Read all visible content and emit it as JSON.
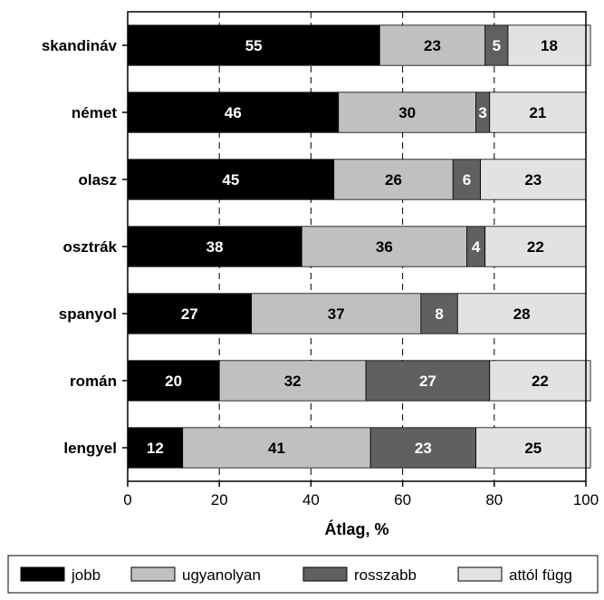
{
  "chart_data": {
    "type": "bar",
    "orientation": "horizontal",
    "stacked": true,
    "categories": [
      "skandináv",
      "német",
      "olasz",
      "osztrák",
      "spanyol",
      "román",
      "lengyel"
    ],
    "series": [
      {
        "name": "jobb",
        "color": "#000000",
        "label_color": "#ffffff",
        "values": [
          55,
          46,
          45,
          38,
          27,
          20,
          12
        ]
      },
      {
        "name": "ugyanolyan",
        "color": "#c0c0c0",
        "label_color": "#000000",
        "values": [
          23,
          30,
          26,
          36,
          37,
          32,
          41
        ]
      },
      {
        "name": "rosszabb",
        "color": "#606060",
        "label_color": "#ffffff",
        "values": [
          5,
          3,
          6,
          4,
          8,
          27,
          23
        ]
      },
      {
        "name": "attól függ",
        "color": "#e2e2e2",
        "label_color": "#000000",
        "values": [
          18,
          21,
          23,
          22,
          28,
          22,
          25
        ]
      }
    ],
    "xlabel": "Átlag, %",
    "xlim": [
      0,
      100
    ],
    "xticks": [
      0,
      20,
      40,
      60,
      80,
      100
    ],
    "grid": "vertical dashed",
    "legend_position": "bottom"
  }
}
